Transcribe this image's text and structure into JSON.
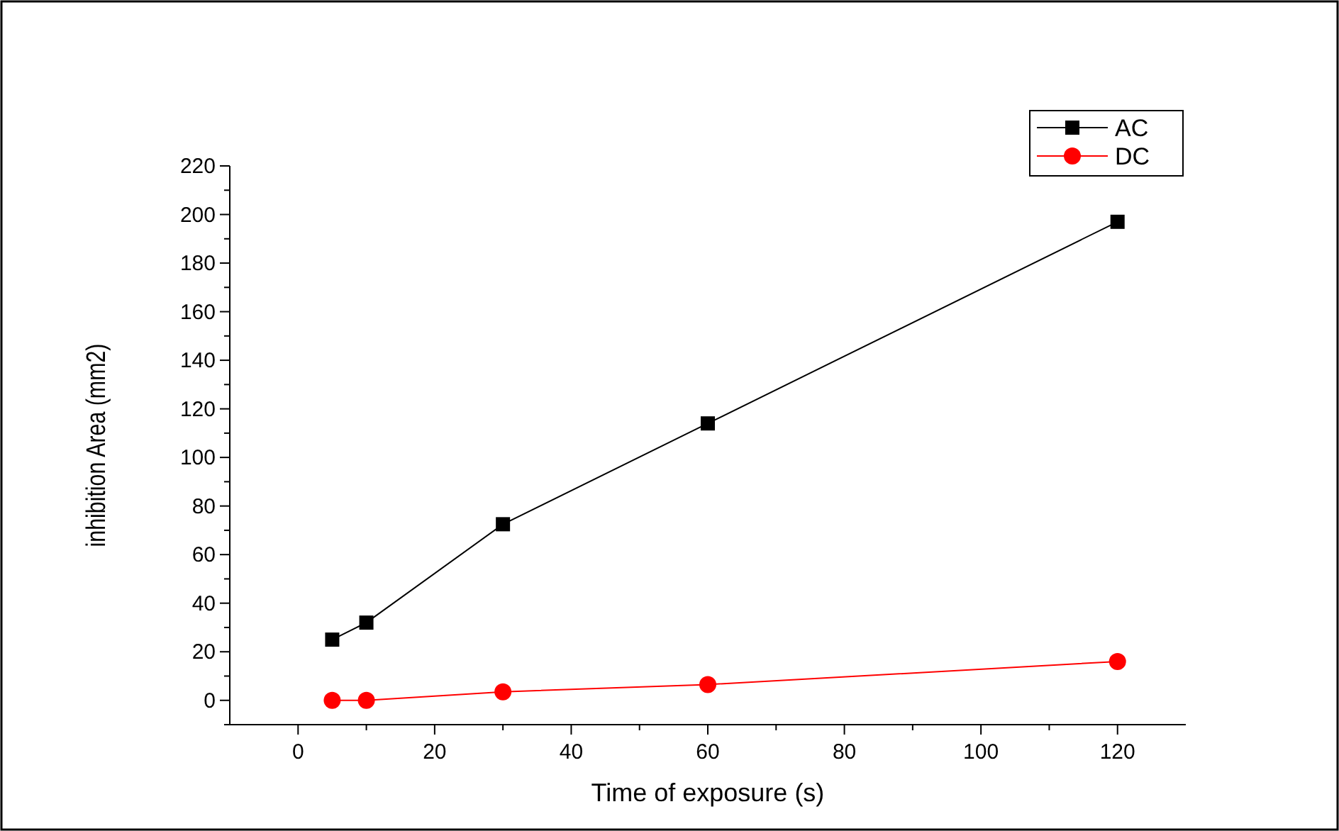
{
  "chart_data": {
    "type": "line",
    "xlabel": "Time of exposure (s)",
    "ylabel": "inhibition Area (mm2)",
    "xlim": [
      -10,
      130
    ],
    "xticks": [
      0,
      {
        "value": 10,
        "label": null
      },
      20,
      {
        "value": 30,
        "label": null
      },
      40,
      {
        "value": 50,
        "label": null
      },
      60,
      {
        "value": 70,
        "label": null
      },
      80,
      {
        "value": 90,
        "label": null
      },
      100,
      {
        "value": 110,
        "label": null
      },
      120
    ],
    "ylim": [
      -10,
      220
    ],
    "yticks": [
      {
        "value": -10,
        "label": null
      },
      0,
      {
        "value": 10,
        "label": null
      },
      20,
      {
        "value": 30,
        "label": null
      },
      40,
      {
        "value": 50,
        "label": null
      },
      60,
      {
        "value": 70,
        "label": null
      },
      80,
      {
        "value": 90,
        "label": null
      },
      100,
      {
        "value": 110,
        "label": null
      },
      120,
      {
        "value": 130,
        "label": null
      },
      140,
      {
        "value": 150,
        "label": null
      },
      160,
      {
        "value": 170,
        "label": null
      },
      180,
      {
        "value": 190,
        "label": null
      },
      200,
      {
        "value": 210,
        "label": null
      },
      220
    ],
    "legend": "top right",
    "grid": false,
    "series": [
      {
        "name": "AC",
        "color": "#000000",
        "marker": "square",
        "x": [
          5,
          10,
          30,
          60,
          120
        ],
        "values": [
          25,
          32,
          72.5,
          114,
          197
        ]
      },
      {
        "name": "DC",
        "color": "#ff0000",
        "marker": "circle",
        "x": [
          5,
          10,
          30,
          60,
          120
        ],
        "values": [
          0,
          0,
          3.5,
          6.5,
          16
        ]
      }
    ]
  }
}
